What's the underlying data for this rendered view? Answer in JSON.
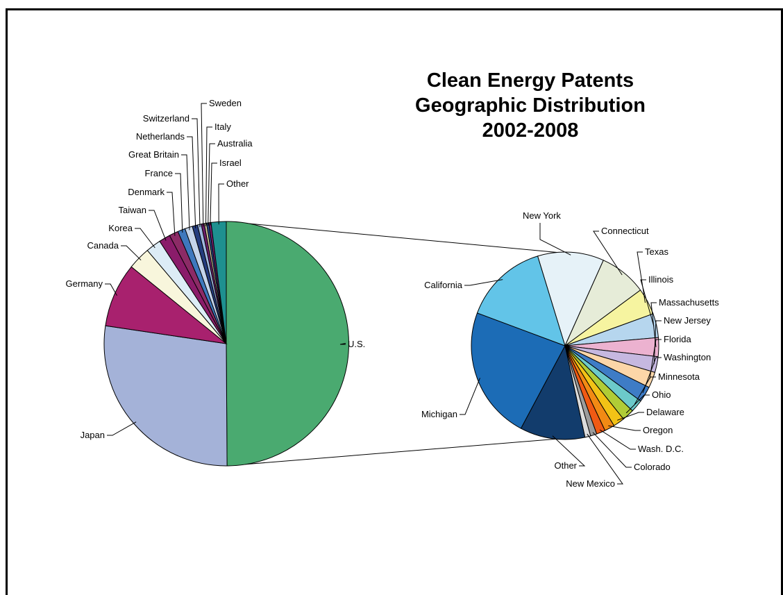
{
  "chart_data": [
    {
      "type": "pie",
      "title": [
        "Clean Energy Patents",
        "Geographic Distribution",
        "2002-2008"
      ],
      "categories": [
        "U.S.",
        "Japan",
        "Germany",
        "Canada",
        "Korea",
        "Taiwan",
        "Denmark",
        "France",
        "Great Britain",
        "Netherlands",
        "Switzerland",
        "Sweden",
        "Italy",
        "Australia",
        "Israel",
        "Other"
      ],
      "values": [
        50.0,
        27.5,
        8.5,
        3.0,
        2.0,
        1.5,
        1.2,
        1.0,
        1.0,
        0.7,
        0.5,
        0.4,
        0.3,
        0.3,
        0.3,
        2.0
      ],
      "colors": [
        "#4aaa70",
        "#a4b2d8",
        "#a8216e",
        "#f8f6dc",
        "#dcecf6",
        "#8a1c6a",
        "#8c2b66",
        "#3e78bd",
        "#c4d4ea",
        "#243c7e",
        "#a0b8e0",
        "#6d1e68",
        "#d0c8a0",
        "#2a4a8a",
        "#7a2070",
        "#1e9090"
      ],
      "exploded": "U.S."
    },
    {
      "type": "pie",
      "title": "",
      "categories": [
        "New York",
        "Connecticut",
        "Texas",
        "Illinois",
        "Massachusetts",
        "New Jersey",
        "Florida",
        "Washington",
        "Minnesota",
        "Ohio",
        "Delaware",
        "Oregon",
        "Wash. D.C.",
        "Colorado",
        "New Mexico",
        "Other",
        "Michigan",
        "California"
      ],
      "values": [
        10.5,
        7.5,
        4.2,
        3.8,
        3.0,
        2.5,
        2.5,
        2.5,
        2.0,
        1.9,
        1.8,
        1.6,
        1.4,
        1.0,
        0.9,
        10.3,
        21.0,
        13.4
      ],
      "colors": [
        "#e6f2f8",
        "#e6ecd8",
        "#f6f4a0",
        "#b6d6ee",
        "#ecb2d0",
        "#c6b8e0",
        "#fcd6a8",
        "#3e7cc6",
        "#6ccaca",
        "#b0cc36",
        "#f2c216",
        "#f28a14",
        "#f05a14",
        "#9c9c9c",
        "#dcdcdc",
        "#123c6c",
        "#1c6cb6",
        "#62c4e8"
      ]
    }
  ]
}
